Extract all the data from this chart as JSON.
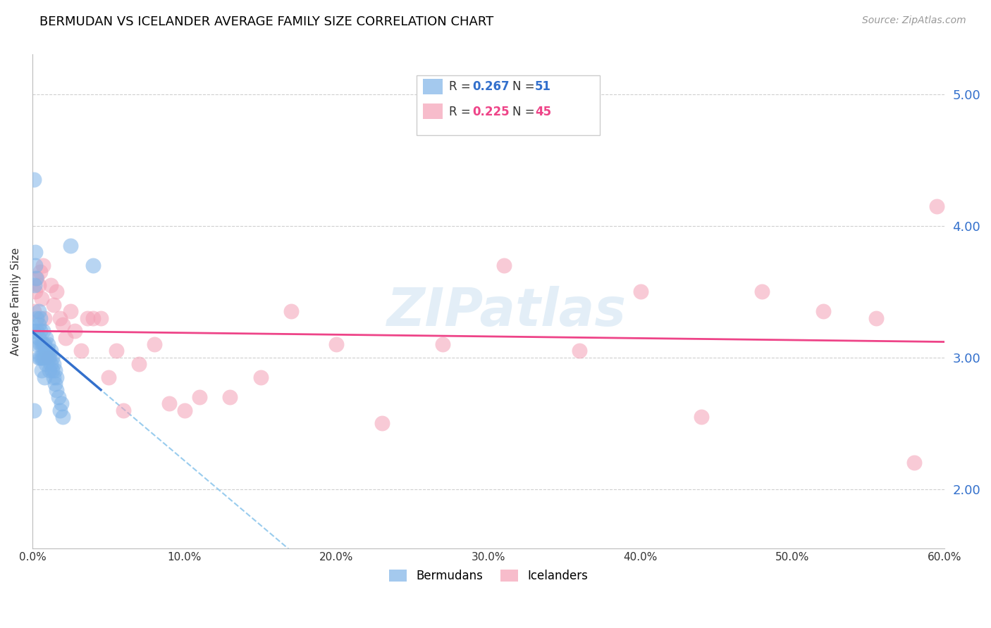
{
  "title": "BERMUDAN VS ICELANDER AVERAGE FAMILY SIZE CORRELATION CHART",
  "source": "Source: ZipAtlas.com",
  "ylabel": "Average Family Size",
  "xlim": [
    0.0,
    0.6
  ],
  "ylim": [
    1.55,
    5.3
  ],
  "yticks": [
    2.0,
    3.0,
    4.0,
    5.0
  ],
  "xticks": [
    0.0,
    0.1,
    0.2,
    0.3,
    0.4,
    0.5,
    0.6
  ],
  "xtick_labels": [
    "0.0%",
    "10.0%",
    "20.0%",
    "30.0%",
    "40.0%",
    "50.0%",
    "60.0%"
  ],
  "legend_labels": [
    "Bermudans",
    "Icelanders"
  ],
  "bermudans_color": "#7eb3e8",
  "icelanders_color": "#f4a0b5",
  "trend_blue": "#3370cc",
  "trend_pink": "#ee4488",
  "dashed_color": "#99ccee",
  "R_blue": 0.267,
  "N_blue": 51,
  "R_pink": 0.225,
  "N_pink": 45,
  "bermudans_x": [
    0.0005,
    0.001,
    0.001,
    0.0015,
    0.002,
    0.002,
    0.0025,
    0.003,
    0.003,
    0.003,
    0.004,
    0.004,
    0.004,
    0.004,
    0.005,
    0.005,
    0.005,
    0.005,
    0.006,
    0.006,
    0.006,
    0.007,
    0.007,
    0.007,
    0.008,
    0.008,
    0.008,
    0.009,
    0.009,
    0.009,
    0.01,
    0.01,
    0.01,
    0.011,
    0.011,
    0.012,
    0.012,
    0.013,
    0.013,
    0.014,
    0.014,
    0.015,
    0.015,
    0.016,
    0.016,
    0.017,
    0.018,
    0.019,
    0.02,
    0.025,
    0.04
  ],
  "bermudans_y": [
    3.2,
    2.6,
    4.35,
    3.55,
    3.7,
    3.8,
    3.6,
    3.2,
    3.3,
    3.1,
    3.0,
    3.15,
    3.25,
    3.35,
    3.0,
    3.1,
    3.2,
    3.3,
    2.9,
    3.0,
    3.1,
    3.0,
    3.1,
    3.2,
    2.85,
    3.0,
    3.1,
    2.95,
    3.05,
    3.15,
    3.0,
    3.05,
    3.1,
    2.9,
    3.0,
    2.95,
    3.05,
    2.9,
    3.0,
    2.85,
    2.95,
    2.8,
    2.9,
    2.75,
    2.85,
    2.7,
    2.6,
    2.65,
    2.55,
    3.85,
    3.7
  ],
  "icelanders_x": [
    0.001,
    0.002,
    0.003,
    0.004,
    0.005,
    0.006,
    0.007,
    0.008,
    0.009,
    0.01,
    0.012,
    0.014,
    0.016,
    0.018,
    0.02,
    0.022,
    0.025,
    0.028,
    0.032,
    0.036,
    0.04,
    0.045,
    0.05,
    0.055,
    0.06,
    0.07,
    0.08,
    0.09,
    0.1,
    0.11,
    0.13,
    0.15,
    0.17,
    0.2,
    0.23,
    0.27,
    0.31,
    0.36,
    0.4,
    0.44,
    0.48,
    0.52,
    0.555,
    0.58,
    0.595
  ],
  "icelanders_y": [
    3.35,
    3.5,
    3.6,
    3.55,
    3.65,
    3.45,
    3.7,
    3.3,
    3.0,
    3.0,
    3.55,
    3.4,
    3.5,
    3.3,
    3.25,
    3.15,
    3.35,
    3.2,
    3.05,
    3.3,
    3.3,
    3.3,
    2.85,
    3.05,
    2.6,
    2.95,
    3.1,
    2.65,
    2.6,
    2.7,
    2.7,
    2.85,
    3.35,
    3.1,
    2.5,
    3.1,
    3.7,
    3.05,
    3.5,
    2.55,
    3.5,
    3.35,
    3.3,
    2.2,
    4.15
  ]
}
